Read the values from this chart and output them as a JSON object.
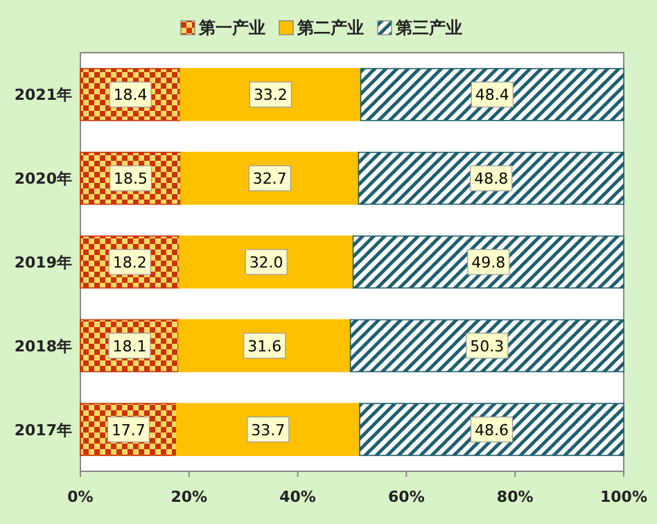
{
  "chart_data": {
    "type": "bar",
    "orientation": "horizontal",
    "stacked": true,
    "legend": "top",
    "categories": [
      "2021年",
      "2020年",
      "2019年",
      "2018年",
      "2017年"
    ],
    "series": [
      {
        "name": "第一产业",
        "color": "#cc3300",
        "values": [
          18.4,
          18.5,
          18.2,
          18.1,
          17.7
        ],
        "value_labels": [
          "18.4",
          "18.5",
          "18.2",
          "18.1",
          "17.7"
        ]
      },
      {
        "name": "第二产业",
        "color": "#ffc000",
        "values": [
          33.2,
          32.7,
          32.0,
          31.6,
          33.7
        ],
        "value_labels": [
          "33.2",
          "32.7",
          "32.0",
          "31.6",
          "33.7"
        ]
      },
      {
        "name": "第三产业",
        "color": "#1f5f6f",
        "values": [
          48.4,
          48.8,
          49.8,
          50.3,
          48.6
        ],
        "value_labels": [
          "48.4",
          "48.8",
          "49.8",
          "50.3",
          "48.6"
        ]
      }
    ],
    "xlim": [
      0,
      100
    ],
    "xticks": [
      {
        "value": 0,
        "label": "0%"
      },
      {
        "value": 20,
        "label": "20%"
      },
      {
        "value": 40,
        "label": "40%"
      },
      {
        "value": 60,
        "label": "60%"
      },
      {
        "value": 80,
        "label": "80%"
      },
      {
        "value": 100,
        "label": "100%"
      }
    ]
  }
}
